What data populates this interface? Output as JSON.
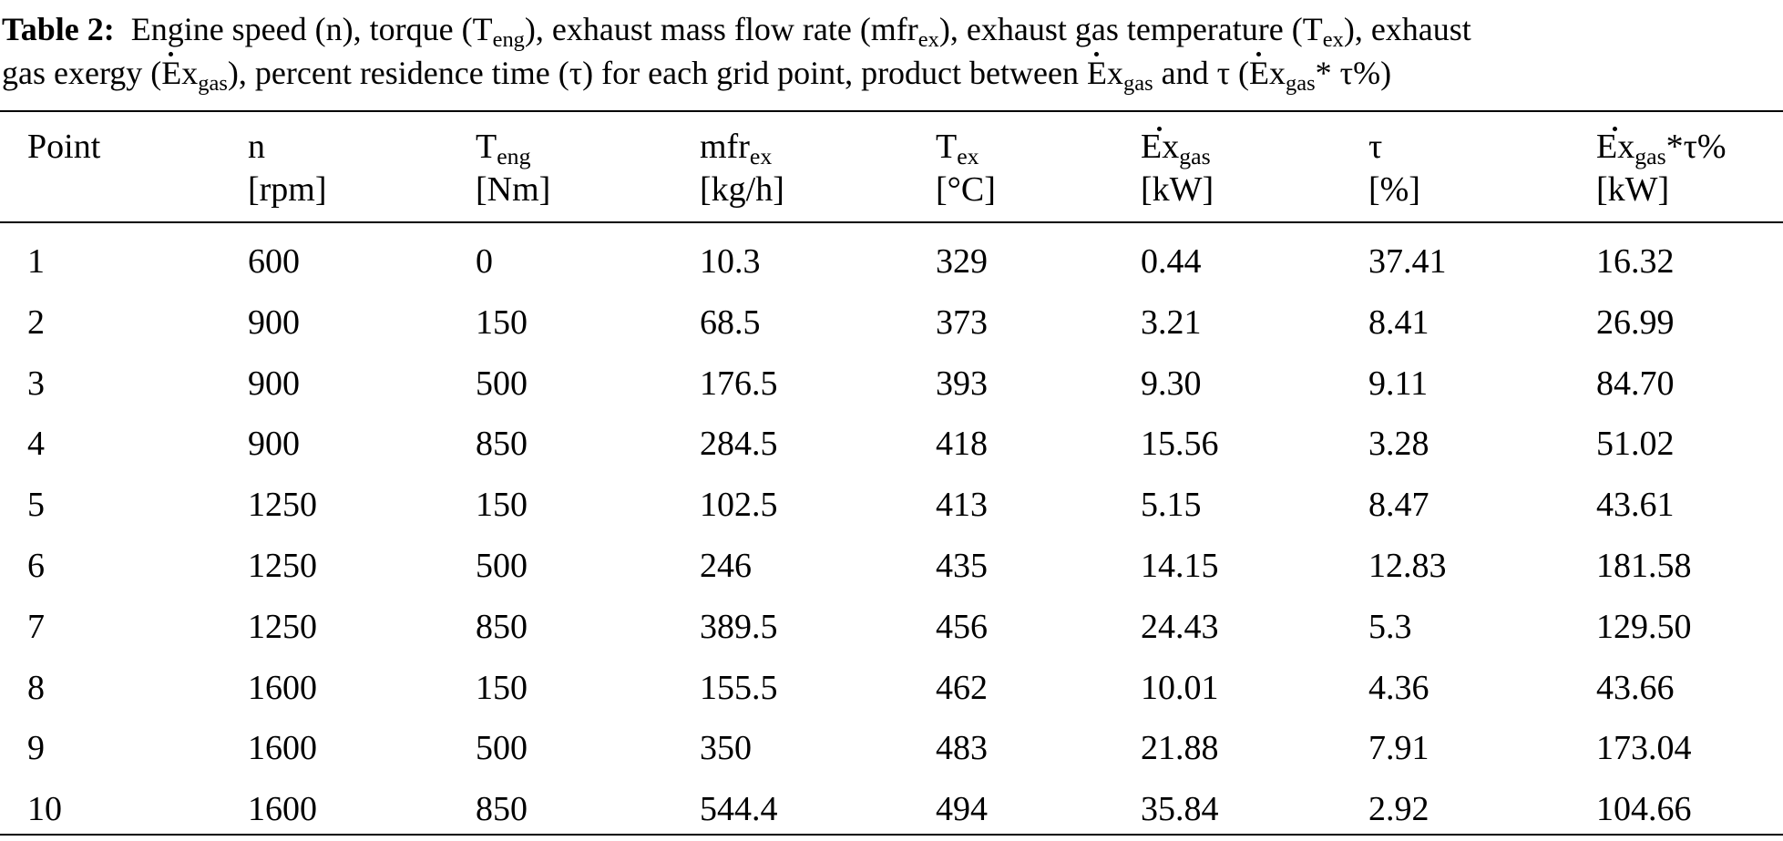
{
  "caption": {
    "label": "Table 2:",
    "line1_text": "Engine speed (n), torque (T",
    "line1_sub1": "eng",
    "line1_mid1": "), exhaust mass flow rate (mfr",
    "line1_sub2": "ex",
    "line1_mid2": "), exhaust gas temperature (T",
    "line1_sub3": "ex",
    "line1_end": "), exhaust",
    "line2_start": "gas exergy (",
    "line2_E1": "E",
    "line2_x1": "x",
    "line2_sub1": "gas",
    "line2_mid1": "), percent residence time (τ) for each grid point, product between ",
    "line2_E2": "E",
    "line2_x2": "x",
    "line2_sub2": "gas",
    "line2_mid2": " and τ (",
    "line2_E3": "E",
    "line2_x3": "x",
    "line2_sub3": "gas",
    "line2_end": "* τ%)"
  },
  "table": {
    "headers": [
      {
        "name": "Point",
        "sub": "",
        "suffix": "",
        "unit": ""
      },
      {
        "name": "n",
        "sub": "",
        "suffix": "",
        "unit": "[rpm]"
      },
      {
        "name": "T",
        "sub": "eng",
        "suffix": "",
        "unit": "[Nm]"
      },
      {
        "name": "mfr",
        "sub": "ex",
        "suffix": "",
        "unit": "[kg/h]"
      },
      {
        "name": "T",
        "sub": "ex",
        "suffix": "",
        "unit": "[°C]"
      },
      {
        "name": "Ex",
        "sub": "gas",
        "suffix": "",
        "unit": "[kW]"
      },
      {
        "name": "τ",
        "sub": "",
        "suffix": "",
        "unit": "[%]"
      },
      {
        "name": "Ex",
        "sub": "gas",
        "suffix": "*τ%",
        "unit": "[kW]"
      }
    ],
    "rows": [
      [
        "1",
        "600",
        "0",
        "10.3",
        "329",
        "0.44",
        "37.41",
        "16.32"
      ],
      [
        "2",
        "900",
        "150",
        "68.5",
        "373",
        "3.21",
        "8.41",
        "26.99"
      ],
      [
        "3",
        "900",
        "500",
        "176.5",
        "393",
        "9.30",
        "9.11",
        "84.70"
      ],
      [
        "4",
        "900",
        "850",
        "284.5",
        "418",
        "15.56",
        "3.28",
        "51.02"
      ],
      [
        "5",
        "1250",
        "150",
        "102.5",
        "413",
        "5.15",
        "8.47",
        "43.61"
      ],
      [
        "6",
        "1250",
        "500",
        "246",
        "435",
        "14.15",
        "12.83",
        "181.58"
      ],
      [
        "7",
        "1250",
        "850",
        "389.5",
        "456",
        "24.43",
        "5.3",
        "129.50"
      ],
      [
        "8",
        "1600",
        "150",
        "155.5",
        "462",
        "10.01",
        "4.36",
        "43.66"
      ],
      [
        "9",
        "1600",
        "500",
        "350",
        "483",
        "21.88",
        "7.91",
        "173.04"
      ],
      [
        "10",
        "1600",
        "850",
        "544.4",
        "494",
        "35.84",
        "2.92",
        "104.66"
      ]
    ]
  }
}
